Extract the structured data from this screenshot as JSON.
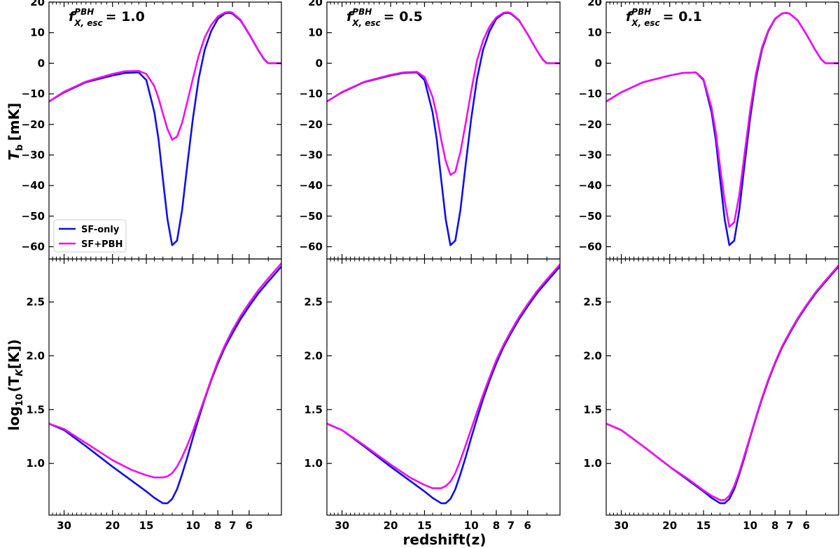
{
  "colors": {
    "sf_only": "#1010e0",
    "sf_pbh": "#ee10ee",
    "axes": "#000000"
  },
  "figure": {
    "xlabel": "redshift(z)",
    "ylabel_top_main": "T",
    "ylabel_top_sub": "b",
    "ylabel_top_unit": "[mK]",
    "ylabel_bottom_pre": "log",
    "ylabel_bottom_sub10": "10",
    "ylabel_bottom_mid": "(T",
    "ylabel_bottom_subK": "K",
    "ylabel_bottom_post": "[K])",
    "legend": [
      "SF-only",
      "SF+PBH"
    ]
  },
  "chart_data": [
    {
      "type": "line",
      "panel": "top-left",
      "annotation": {
        "f": "f",
        "sup": "PBH",
        "sub": "X, esc",
        "value": "= 1.0"
      },
      "x_axis": "log(1+z), reversed",
      "xlim": [
        34,
        4.4
      ],
      "xticks": [
        30,
        20,
        15,
        10,
        8,
        7,
        6
      ],
      "xticklabels": [
        "30",
        "20",
        "15",
        "10",
        "8",
        "7",
        "6"
      ],
      "ylim": [
        -64,
        20
      ],
      "yticks": [
        -60,
        -50,
        -40,
        -30,
        -20,
        -10,
        0,
        10,
        20
      ],
      "yticklabels": [
        "−60",
        "−50",
        "−40",
        "−30",
        "−20",
        "−10",
        "0",
        "10",
        "20"
      ],
      "series": [
        {
          "name": "SF-only",
          "x": [
            34,
            30,
            25,
            20,
            18,
            16,
            15,
            14,
            13.5,
            13,
            12.5,
            12,
            11.5,
            11,
            10.5,
            10,
            9.5,
            9,
            8.5,
            8,
            7.5,
            7.2,
            7,
            6.5,
            6,
            5.5,
            5.2,
            5,
            4.8,
            4.4
          ],
          "y": [
            -12.5,
            -9.5,
            -6.2,
            -4,
            -3.2,
            -3,
            -5.5,
            -16,
            -25,
            -38,
            -51,
            -59.5,
            -58,
            -48,
            -33,
            -18,
            -5,
            4.5,
            10.5,
            14.5,
            16.3,
            16.5,
            16.2,
            14,
            9.5,
            4.2,
            1.2,
            0,
            0,
            0
          ]
        },
        {
          "name": "SF+PBH",
          "x": [
            34,
            30,
            25,
            20,
            18,
            16,
            15,
            14,
            13.5,
            13,
            12.5,
            12,
            11.5,
            11,
            10.5,
            10,
            9.5,
            9,
            8.5,
            8,
            7.5,
            7.2,
            7,
            6.5,
            6,
            5.5,
            5.2,
            5,
            4.8,
            4.4
          ],
          "y": [
            -12.5,
            -9.3,
            -6,
            -3.5,
            -2.6,
            -2.5,
            -3.5,
            -7.5,
            -11.5,
            -16.5,
            -21.5,
            -25,
            -24,
            -19.5,
            -12.5,
            -5,
            2.5,
            8.5,
            12.5,
            15.3,
            16.6,
            16.8,
            16.5,
            14.2,
            9.6,
            4.3,
            1.3,
            0,
            0,
            0
          ]
        }
      ]
    },
    {
      "type": "line",
      "panel": "top-middle",
      "annotation": {
        "f": "f",
        "sup": "PBH",
        "sub": "X, esc",
        "value": "= 0.5"
      },
      "x_axis": "log(1+z), reversed",
      "xlim": [
        34,
        4.4
      ],
      "xticks": [
        30,
        20,
        15,
        10,
        8,
        7,
        6
      ],
      "xticklabels": [
        "30",
        "20",
        "15",
        "10",
        "8",
        "7",
        "6"
      ],
      "ylim": [
        -64,
        20
      ],
      "yticks": [
        -60,
        -50,
        -40,
        -30,
        -20,
        -10,
        0,
        10,
        20
      ],
      "yticklabels": [
        "−60",
        "−50",
        "−40",
        "−30",
        "−20",
        "−10",
        "0",
        "10",
        "20"
      ],
      "series": [
        {
          "name": "SF-only",
          "x": [
            34,
            30,
            25,
            20,
            18,
            16,
            15,
            14,
            13.5,
            13,
            12.5,
            12,
            11.5,
            11,
            10.5,
            10,
            9.5,
            9,
            8.5,
            8,
            7.5,
            7.2,
            7,
            6.5,
            6,
            5.5,
            5.2,
            5,
            4.8,
            4.4
          ],
          "y": [
            -12.5,
            -9.5,
            -6.2,
            -4,
            -3.2,
            -3,
            -5.5,
            -16,
            -25,
            -38,
            -51,
            -59.5,
            -58,
            -48,
            -33,
            -18,
            -5,
            4.5,
            10.5,
            14.5,
            16.3,
            16.5,
            16.2,
            14,
            9.5,
            4.2,
            1.2,
            0,
            0,
            0
          ]
        },
        {
          "name": "SF+PBH",
          "x": [
            34,
            30,
            25,
            20,
            18,
            16,
            15,
            14,
            13.5,
            13,
            12.5,
            12,
            11.5,
            11,
            10.5,
            10,
            9.5,
            9,
            8.5,
            8,
            7.5,
            7.2,
            7,
            6.5,
            6,
            5.5,
            5.2,
            5,
            4.8,
            4.4
          ],
          "y": [
            -12.5,
            -9.4,
            -6.1,
            -3.8,
            -3,
            -2.8,
            -4.5,
            -11,
            -17,
            -25,
            -32,
            -36.5,
            -35.5,
            -29,
            -19.5,
            -9,
            1,
            7.5,
            12,
            15,
            16.5,
            16.7,
            16.4,
            14.1,
            9.5,
            4.2,
            1.2,
            0,
            0,
            0
          ]
        }
      ]
    },
    {
      "type": "line",
      "panel": "top-right",
      "annotation": {
        "f": "f",
        "sup": "PBH",
        "sub": "X, esc",
        "value": "= 0.1"
      },
      "x_axis": "log(1+z), reversed",
      "xlim": [
        34,
        4.4
      ],
      "xticks": [
        30,
        20,
        15,
        10,
        8,
        7,
        6
      ],
      "xticklabels": [
        "30",
        "20",
        "15",
        "10",
        "8",
        "7",
        "6"
      ],
      "ylim": [
        -64,
        20
      ],
      "yticks": [
        -60,
        -50,
        -40,
        -30,
        -20,
        -10,
        0,
        10,
        20
      ],
      "yticklabels": [
        "−60",
        "−50",
        "−40",
        "−30",
        "−20",
        "−10",
        "0",
        "10",
        "20"
      ],
      "series": [
        {
          "name": "SF-only",
          "x": [
            34,
            30,
            25,
            20,
            18,
            16,
            15,
            14,
            13.5,
            13,
            12.5,
            12,
            11.5,
            11,
            10.5,
            10,
            9.5,
            9,
            8.5,
            8,
            7.5,
            7.2,
            7,
            6.5,
            6,
            5.5,
            5.2,
            5,
            4.8,
            4.4
          ],
          "y": [
            -12.5,
            -9.5,
            -6.2,
            -4,
            -3.2,
            -3,
            -5.5,
            -16,
            -25,
            -38,
            -51,
            -59.5,
            -58,
            -48,
            -33,
            -18,
            -5,
            4.5,
            10.5,
            14.5,
            16.3,
            16.5,
            16.2,
            14,
            9.5,
            4.2,
            1.2,
            0,
            0,
            0
          ]
        },
        {
          "name": "SF+PBH",
          "x": [
            34,
            30,
            25,
            20,
            18,
            16,
            15,
            14,
            13.5,
            13,
            12.5,
            12,
            11.5,
            11,
            10.5,
            10,
            9.5,
            9,
            8.5,
            8,
            7.5,
            7.2,
            7,
            6.5,
            6,
            5.5,
            5.2,
            5,
            4.8,
            4.4
          ],
          "y": [
            -12.5,
            -9.5,
            -6.2,
            -4,
            -3.2,
            -3,
            -5.2,
            -14.5,
            -22.5,
            -34,
            -45,
            -53.5,
            -52,
            -43,
            -29.5,
            -15.5,
            -3.5,
            5.2,
            10.8,
            14.6,
            16.3,
            16.5,
            16.2,
            14,
            9.5,
            4.2,
            1.2,
            0,
            0,
            0
          ]
        }
      ]
    },
    {
      "type": "line",
      "panel": "bottom-left",
      "x_axis": "log(1+z), reversed",
      "xlim": [
        34,
        4.4
      ],
      "xticks": [
        30,
        20,
        15,
        10,
        8,
        7,
        6
      ],
      "xticklabels": [
        "30",
        "20",
        "15",
        "10",
        "8",
        "7",
        "6"
      ],
      "ylim": [
        0.52,
        2.9
      ],
      "yticks": [
        1.0,
        1.5,
        2.0,
        2.5
      ],
      "yticklabels": [
        "1.0",
        "1.5",
        "2.0",
        "2.5"
      ],
      "series": [
        {
          "name": "SF-only",
          "x": [
            34,
            30,
            25,
            20,
            17,
            15,
            14,
            13,
            12.5,
            12,
            11.5,
            11,
            10.5,
            10,
            9.5,
            9,
            8.5,
            8,
            7.5,
            7,
            6.5,
            6,
            5.5,
            5,
            4.4
          ],
          "y": [
            1.37,
            1.31,
            1.16,
            0.97,
            0.84,
            0.74,
            0.68,
            0.63,
            0.63,
            0.67,
            0.76,
            0.9,
            1.06,
            1.24,
            1.42,
            1.6,
            1.77,
            1.93,
            2.08,
            2.21,
            2.34,
            2.46,
            2.58,
            2.69,
            2.83
          ]
        },
        {
          "name": "SF+PBH",
          "x": [
            34,
            30,
            25,
            20,
            17,
            15,
            14,
            13,
            12.5,
            12,
            11.5,
            11,
            10.5,
            10,
            9.5,
            9,
            8.5,
            8,
            7.5,
            7,
            6.5,
            6,
            5.5,
            5,
            4.4
          ],
          "y": [
            1.37,
            1.32,
            1.19,
            1.03,
            0.94,
            0.89,
            0.87,
            0.87,
            0.88,
            0.91,
            0.97,
            1.06,
            1.17,
            1.3,
            1.45,
            1.61,
            1.78,
            1.95,
            2.1,
            2.24,
            2.37,
            2.49,
            2.61,
            2.72,
            2.86
          ]
        }
      ]
    },
    {
      "type": "line",
      "panel": "bottom-middle",
      "x_axis": "log(1+z), reversed",
      "xlim": [
        34,
        4.4
      ],
      "xticks": [
        30,
        20,
        15,
        10,
        8,
        7,
        6
      ],
      "xticklabels": [
        "30",
        "20",
        "15",
        "10",
        "8",
        "7",
        "6"
      ],
      "ylim": [
        0.52,
        2.9
      ],
      "yticks": [
        1.0,
        1.5,
        2.0,
        2.5
      ],
      "yticklabels": [
        "1.0",
        "1.5",
        "2.0",
        "2.5"
      ],
      "series": [
        {
          "name": "SF-only",
          "x": [
            34,
            30,
            25,
            20,
            17,
            15,
            14,
            13,
            12.5,
            12,
            11.5,
            11,
            10.5,
            10,
            9.5,
            9,
            8.5,
            8,
            7.5,
            7,
            6.5,
            6,
            5.5,
            5,
            4.4
          ],
          "y": [
            1.37,
            1.31,
            1.16,
            0.97,
            0.84,
            0.74,
            0.68,
            0.63,
            0.63,
            0.67,
            0.76,
            0.9,
            1.06,
            1.24,
            1.42,
            1.6,
            1.77,
            1.93,
            2.08,
            2.21,
            2.34,
            2.46,
            2.58,
            2.69,
            2.83
          ]
        },
        {
          "name": "SF+PBH",
          "x": [
            34,
            30,
            25,
            20,
            17,
            15,
            14,
            13,
            12.5,
            12,
            11.5,
            11,
            10.5,
            10,
            9.5,
            9,
            8.5,
            8,
            7.5,
            7,
            6.5,
            6,
            5.5,
            5,
            4.4
          ],
          "y": [
            1.37,
            1.31,
            1.17,
            0.99,
            0.87,
            0.8,
            0.77,
            0.77,
            0.79,
            0.83,
            0.91,
            1.03,
            1.17,
            1.32,
            1.48,
            1.64,
            1.8,
            1.96,
            2.1,
            2.23,
            2.36,
            2.48,
            2.6,
            2.71,
            2.85
          ]
        }
      ]
    },
    {
      "type": "line",
      "panel": "bottom-right",
      "x_axis": "log(1+z), reversed",
      "xlim": [
        34,
        4.4
      ],
      "xticks": [
        30,
        20,
        15,
        10,
        8,
        7,
        6
      ],
      "xticklabels": [
        "30",
        "20",
        "15",
        "10",
        "8",
        "7",
        "6"
      ],
      "ylim": [
        0.52,
        2.9
      ],
      "yticks": [
        1.0,
        1.5,
        2.0,
        2.5
      ],
      "yticklabels": [
        "1.0",
        "1.5",
        "2.0",
        "2.5"
      ],
      "series": [
        {
          "name": "SF-only",
          "x": [
            34,
            30,
            25,
            20,
            17,
            15,
            14,
            13,
            12.5,
            12,
            11.5,
            11,
            10.5,
            10,
            9.5,
            9,
            8.5,
            8,
            7.5,
            7,
            6.5,
            6,
            5.5,
            5,
            4.4
          ],
          "y": [
            1.37,
            1.31,
            1.16,
            0.97,
            0.84,
            0.74,
            0.68,
            0.63,
            0.63,
            0.67,
            0.76,
            0.9,
            1.06,
            1.24,
            1.42,
            1.6,
            1.77,
            1.93,
            2.08,
            2.21,
            2.34,
            2.46,
            2.58,
            2.69,
            2.83
          ]
        },
        {
          "name": "SF+PBH",
          "x": [
            34,
            30,
            25,
            20,
            17,
            15,
            14,
            13,
            12.5,
            12,
            11.5,
            11,
            10.5,
            10,
            9.5,
            9,
            8.5,
            8,
            7.5,
            7,
            6.5,
            6,
            5.5,
            5,
            4.4
          ],
          "y": [
            1.37,
            1.31,
            1.16,
            0.97,
            0.85,
            0.75,
            0.7,
            0.66,
            0.66,
            0.7,
            0.79,
            0.92,
            1.08,
            1.25,
            1.43,
            1.61,
            1.78,
            1.94,
            2.09,
            2.22,
            2.35,
            2.47,
            2.59,
            2.7,
            2.84
          ]
        }
      ]
    }
  ]
}
